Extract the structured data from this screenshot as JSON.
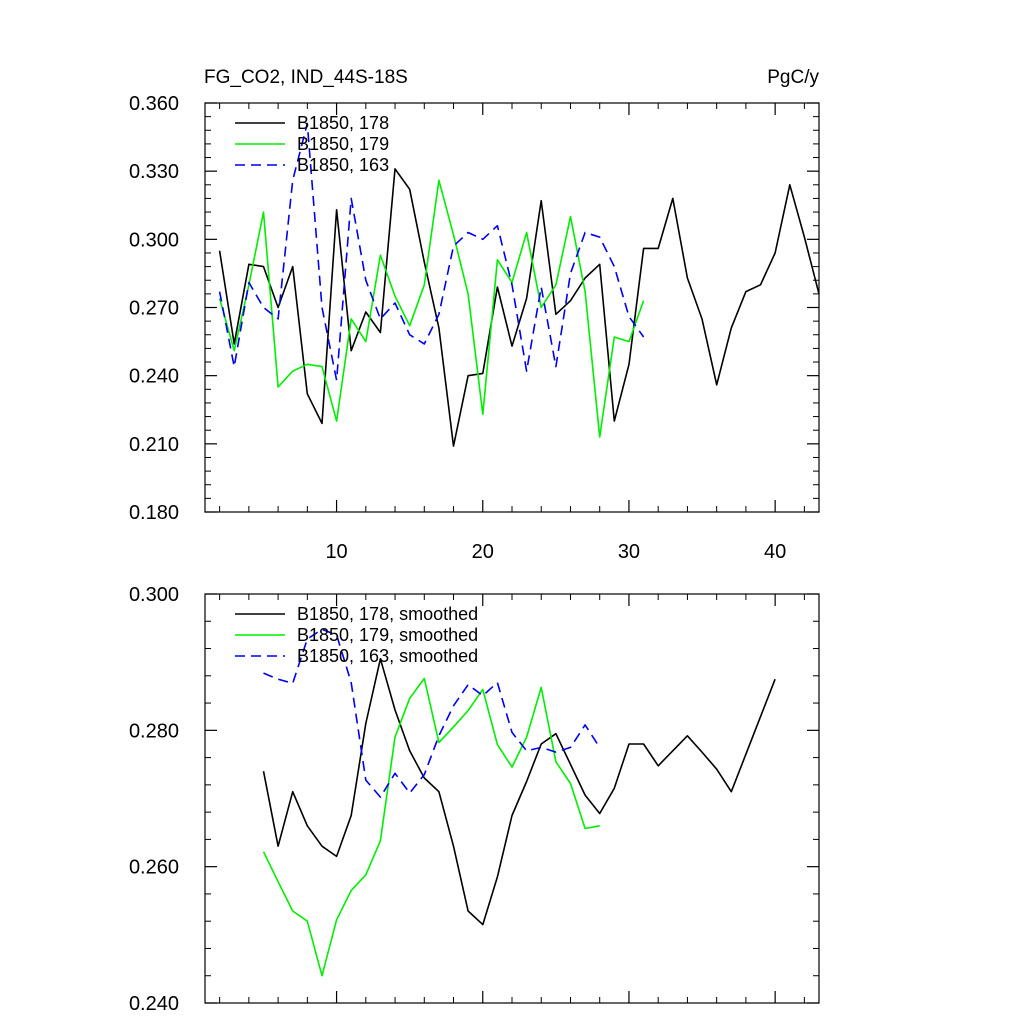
{
  "colors": {
    "background": "#ffffff",
    "axes": "#000000",
    "series_black": "#000000",
    "series_green": "#00ee00",
    "series_blue": "#0000ee"
  },
  "chart_data": [
    {
      "type": "line",
      "title": "FG_CO2, IND_44S-18S",
      "units": "PgC/y",
      "xlabel": "",
      "ylabel": "",
      "xlim": [
        1,
        43
      ],
      "ylim": [
        0.18,
        0.36
      ],
      "yticks": [
        "0.180",
        "0.210",
        "0.240",
        "0.270",
        "0.300",
        "0.330",
        "0.360"
      ],
      "xticks": [
        "10",
        "20",
        "30",
        "40"
      ],
      "legend_position": "top-left",
      "series": [
        {
          "name": "B1850, 178",
          "style": "solid",
          "color": "#000000",
          "x": [
            2,
            3,
            4,
            5,
            6,
            7,
            8,
            9,
            10,
            11,
            12,
            13,
            14,
            15,
            16,
            17,
            18,
            19,
            20,
            21,
            22,
            23,
            24,
            25,
            26,
            27,
            28,
            29,
            30,
            31,
            32,
            33,
            34,
            35,
            36,
            37,
            38,
            39,
            40,
            41,
            42,
            43
          ],
          "values": [
            0.295,
            0.254,
            0.289,
            0.288,
            0.27,
            0.288,
            0.232,
            0.219,
            0.313,
            0.251,
            0.268,
            0.259,
            0.331,
            0.322,
            0.29,
            0.261,
            0.209,
            0.24,
            0.241,
            0.279,
            0.253,
            0.274,
            0.317,
            0.267,
            0.273,
            0.283,
            0.289,
            0.22,
            0.245,
            0.296,
            0.296,
            0.318,
            0.283,
            0.265,
            0.236,
            0.261,
            0.277,
            0.28,
            0.294,
            0.324,
            0.301,
            0.276
          ]
        },
        {
          "name": "B1850, 179",
          "style": "solid",
          "color": "#00ee00",
          "x": [
            2,
            3,
            4,
            5,
            6,
            7,
            8,
            9,
            10,
            11,
            12,
            13,
            14,
            15,
            16,
            17,
            18,
            19,
            20,
            21,
            22,
            23,
            24,
            25,
            26,
            27,
            28,
            29,
            30,
            31
          ],
          "values": [
            0.274,
            0.251,
            0.28,
            0.312,
            0.235,
            0.242,
            0.245,
            0.244,
            0.22,
            0.265,
            0.255,
            0.293,
            0.275,
            0.262,
            0.28,
            0.326,
            0.302,
            0.276,
            0.223,
            0.291,
            0.281,
            0.303,
            0.27,
            0.28,
            0.31,
            0.277,
            0.213,
            0.257,
            0.255,
            0.273
          ]
        },
        {
          "name": "B1850, 163",
          "style": "dashed",
          "color": "#0000ee",
          "x": [
            2,
            3,
            4,
            5,
            6,
            7,
            8,
            9,
            10,
            11,
            12,
            13,
            14,
            15,
            16,
            17,
            18,
            19,
            20,
            21,
            22,
            23,
            24,
            25,
            26,
            27,
            28,
            29,
            30,
            31
          ],
          "values": [
            0.277,
            0.244,
            0.281,
            0.27,
            0.265,
            0.326,
            0.351,
            0.27,
            0.238,
            0.318,
            0.282,
            0.265,
            0.272,
            0.258,
            0.254,
            0.267,
            0.297,
            0.303,
            0.3,
            0.306,
            0.28,
            0.242,
            0.279,
            0.244,
            0.285,
            0.303,
            0.301,
            0.288,
            0.266,
            0.257
          ]
        }
      ]
    },
    {
      "type": "line",
      "title": "",
      "xlabel": "",
      "ylabel": "",
      "xlim": [
        1,
        43
      ],
      "ylim": [
        0.24,
        0.3
      ],
      "yticks": [
        "0.240",
        "0.260",
        "0.280",
        "0.300"
      ],
      "xticks": [],
      "legend_position": "top-left",
      "series": [
        {
          "name": "B1850, 178, smoothed",
          "style": "solid",
          "color": "#000000",
          "x": [
            5,
            6,
            7,
            8,
            9,
            10,
            11,
            12,
            13,
            14,
            15,
            16,
            17,
            18,
            19,
            20,
            21,
            22,
            23,
            24,
            25,
            26,
            27,
            28,
            29,
            30,
            31,
            32,
            33,
            34,
            35,
            36,
            37,
            38,
            39,
            40
          ],
          "values": [
            0.274,
            0.263,
            0.271,
            0.266,
            0.263,
            0.2615,
            0.2675,
            0.281,
            0.2905,
            0.283,
            0.277,
            0.273,
            0.271,
            0.263,
            0.2535,
            0.2515,
            0.2585,
            0.2675,
            0.2725,
            0.278,
            0.2795,
            0.275,
            0.2705,
            0.2678,
            0.2715,
            0.278,
            0.278,
            0.2748,
            0.277,
            0.2792,
            0.2768,
            0.2743,
            0.271,
            0.2765,
            0.282,
            0.2875
          ]
        },
        {
          "name": "B1850, 179, smoothed",
          "style": "solid",
          "color": "#00ee00",
          "x": [
            5,
            6,
            7,
            8,
            9,
            10,
            11,
            12,
            13,
            14,
            15,
            16,
            17,
            18,
            19,
            20,
            21,
            22,
            23,
            24,
            25,
            26,
            27,
            28
          ],
          "values": [
            0.2622,
            0.2578,
            0.2535,
            0.252,
            0.244,
            0.2522,
            0.2565,
            0.2588,
            0.2638,
            0.279,
            0.2847,
            0.2876,
            0.2782,
            0.2805,
            0.2829,
            0.286,
            0.2779,
            0.2746,
            0.279,
            0.2863,
            0.2754,
            0.2722,
            0.2656,
            0.266
          ]
        },
        {
          "name": "B1850, 163, smoothed",
          "style": "dashed",
          "color": "#0000ee",
          "x": [
            5,
            6,
            7,
            8,
            9,
            10,
            11,
            12,
            13,
            14,
            15,
            16,
            17,
            18,
            19,
            20,
            21,
            22,
            23,
            24,
            25,
            26,
            27,
            28
          ],
          "values": [
            0.2884,
            0.2875,
            0.2869,
            0.2934,
            0.2948,
            0.294,
            0.287,
            0.2727,
            0.2702,
            0.2737,
            0.2708,
            0.2735,
            0.2792,
            0.2836,
            0.2867,
            0.2851,
            0.287,
            0.2797,
            0.277,
            0.2775,
            0.2768,
            0.2775,
            0.2808,
            0.2775
          ]
        }
      ]
    }
  ]
}
